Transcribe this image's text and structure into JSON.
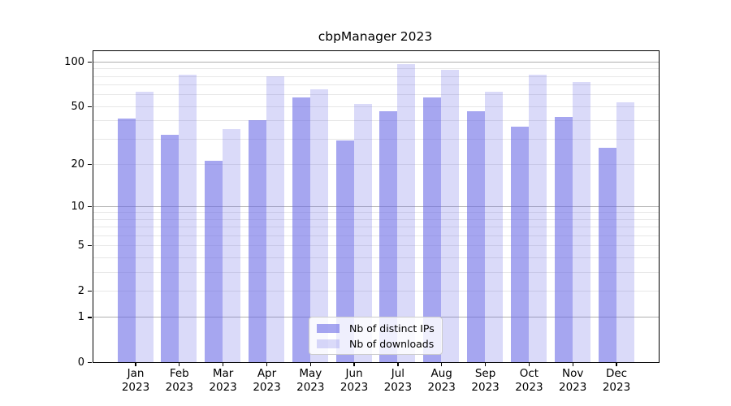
{
  "title": "cbpManager 2023",
  "chart_data": {
    "type": "bar",
    "title": "cbpManager 2023",
    "xlabel": "",
    "ylabel": "",
    "yscale": "log(value+1)",
    "ylim": [
      0,
      118
    ],
    "grid": true,
    "legend_position": "lower center",
    "categories": [
      "Jan 2023",
      "Feb 2023",
      "Mar 2023",
      "Apr 2023",
      "May 2023",
      "Jun 2023",
      "Jul 2023",
      "Aug 2023",
      "Sep 2023",
      "Oct 2023",
      "Nov 2023",
      "Dec 2023"
    ],
    "series": [
      {
        "name": "Nb of distinct IPs",
        "color": "rgba(102,102,230,0.58)",
        "values": [
          41,
          32,
          21,
          40,
          57,
          29,
          46,
          57,
          46,
          36,
          42,
          26
        ]
      },
      {
        "name": "Nb of downloads",
        "color": "rgba(102,102,230,0.24)",
        "values": [
          63,
          82,
          35,
          80,
          65,
          52,
          96,
          88,
          63,
          82,
          73,
          53
        ]
      }
    ],
    "y_tick_labels": [
      "100",
      "50",
      "20",
      "10",
      "5",
      "2",
      "1",
      "0"
    ],
    "y_tick_values": [
      100,
      50,
      20,
      10,
      5,
      2,
      1,
      0
    ],
    "major_gridlines": [
      1,
      10,
      100
    ],
    "minor_gridlines": [
      2,
      3,
      4,
      5,
      6,
      7,
      8,
      9,
      20,
      30,
      40,
      50,
      60,
      70,
      80,
      90
    ]
  },
  "colors": {
    "axis": "#000000",
    "text": "#000000",
    "major_grid": "#b0b0b0",
    "minor_grid": "#e7e7e7"
  }
}
